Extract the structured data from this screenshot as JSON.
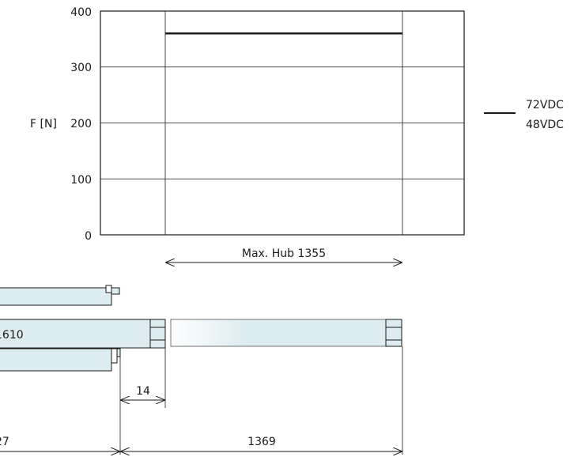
{
  "chart_data": {
    "type": "line",
    "ylabel": "F [N]",
    "ylim": [
      0,
      400
    ],
    "y_ticks": [
      "400",
      "300",
      "200",
      "100",
      "0"
    ],
    "grid": true,
    "legend_position": "right",
    "series": [
      {
        "name": "72VDC",
        "x": [
          0,
          1355
        ],
        "y": [
          360,
          360
        ]
      },
      {
        "name": "48VDC",
        "x": [
          0,
          1355
        ],
        "y": [
          360,
          360
        ]
      }
    ]
  },
  "dimensions": {
    "max_stroke": "Max. Hub 1355",
    "offset": "14",
    "retracted": "1369",
    "housing_partial": "27",
    "tube_label_partial": "1610"
  }
}
